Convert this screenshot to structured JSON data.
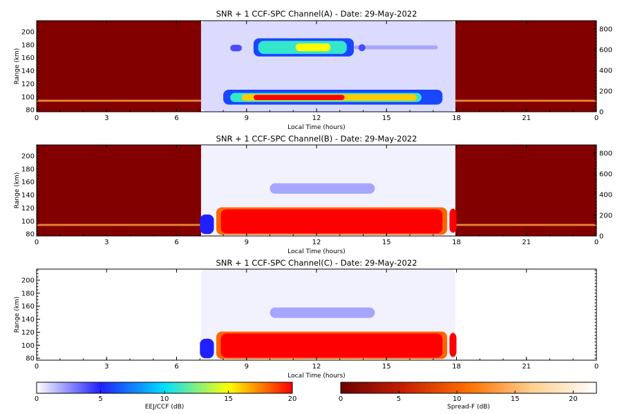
{
  "chart_data": [
    {
      "type": "heatmap",
      "title": "SNR + 1 CCF-SPC Channel(A) - Date: 29-May-2022",
      "xlabel": "Local Time (hours)",
      "ylabel": "Range (km)",
      "xlim": [
        0,
        24
      ],
      "ylim": [
        77,
        217
      ],
      "y2lim": [
        0,
        880
      ],
      "xticks": [
        "0",
        "3",
        "6",
        "9",
        "12",
        "15",
        "18",
        "21",
        "0"
      ],
      "yticks": [
        "80",
        "100",
        "120",
        "140",
        "160",
        "180",
        "200"
      ],
      "y2ticks": [
        "0",
        "200",
        "400",
        "600",
        "800"
      ],
      "night_spread_f": true,
      "blocks": [
        {
          "x": [
            7.05,
            17.95
          ],
          "y": [
            77,
            217
          ],
          "colormap": "eej",
          "db": 0.8
        },
        {
          "x": [
            8.0,
            17.4
          ],
          "y": [
            88,
            111
          ],
          "colormap": "eej",
          "db": 6
        },
        {
          "x": [
            8.3,
            16.5
          ],
          "y": [
            92,
            106
          ],
          "colormap": "eej",
          "db": 11
        },
        {
          "x": [
            8.8,
            16.3
          ],
          "y": [
            94,
            104
          ],
          "colormap": "eej",
          "db": 16
        },
        {
          "x": [
            9.3,
            13.2
          ],
          "y": [
            95,
            103
          ],
          "colormap": "eej",
          "db": 20
        },
        {
          "x": [
            9.3,
            13.6
          ],
          "y": [
            162,
            190
          ],
          "colormap": "eej",
          "db": 6
        },
        {
          "x": [
            9.5,
            13.3
          ],
          "y": [
            166,
            186
          ],
          "colormap": "eej",
          "db": 11
        },
        {
          "x": [
            11.1,
            12.6
          ],
          "y": [
            170,
            182
          ],
          "colormap": "eej",
          "db": 15
        },
        {
          "x": [
            8.3,
            8.8
          ],
          "y": [
            170,
            180
          ],
          "colormap": "eej",
          "db": 4
        },
        {
          "x": [
            13.6,
            17.2
          ],
          "y": [
            173,
            179
          ],
          "colormap": "eej",
          "db": 2
        },
        {
          "x": [
            13.8,
            14.1
          ],
          "y": [
            170,
            181
          ],
          "colormap": "eej",
          "db": 4
        }
      ]
    },
    {
      "type": "heatmap",
      "title": "SNR + 1 CCF-SPC Channel(B) - Date: 29-May-2022",
      "xlabel": "Local Time (hours)",
      "ylabel": "Range (km)",
      "xlim": [
        0,
        24
      ],
      "ylim": [
        77,
        217
      ],
      "y2lim": [
        0,
        880
      ],
      "xticks": [
        "0",
        "3",
        "6",
        "9",
        "12",
        "15",
        "18",
        "21",
        "0"
      ],
      "yticks": [
        "80",
        "100",
        "120",
        "140",
        "160",
        "180",
        "200"
      ],
      "y2ticks": [
        "0",
        "200",
        "400",
        "600",
        "800"
      ],
      "night_spread_f": true,
      "blocks": [
        {
          "x": [
            7.05,
            17.95
          ],
          "y": [
            77,
            217
          ],
          "colormap": "eej",
          "db": 0.3
        },
        {
          "x": [
            10.0,
            14.5
          ],
          "y": [
            142,
            158
          ],
          "colormap": "eej",
          "db": 2
        },
        {
          "x": [
            7.0,
            7.6
          ],
          "y": [
            80,
            110
          ],
          "colormap": "eej",
          "db": 5
        },
        {
          "x": [
            7.7,
            17.6
          ],
          "y": [
            79,
            121
          ],
          "colormap": "eej",
          "db": 18
        },
        {
          "x": [
            7.9,
            17.4
          ],
          "y": [
            81,
            118
          ],
          "colormap": "eej",
          "db": 20
        },
        {
          "x": [
            17.7,
            18.0
          ],
          "y": [
            82,
            119
          ],
          "colormap": "eej",
          "db": 20
        }
      ]
    },
    {
      "type": "heatmap",
      "title": "SNR + 1 CCF-SPC Channel(C) - Date: 29-May-2022",
      "xlabel": "Local Time (hours)",
      "ylabel": "Range (km)",
      "xlim": [
        0,
        24
      ],
      "ylim": [
        77,
        217
      ],
      "xticks": [
        "0",
        "3",
        "6",
        "9",
        "12",
        "15",
        "18",
        "21",
        "0"
      ],
      "yticks": [
        "80",
        "100",
        "120",
        "140",
        "160",
        "180",
        "200"
      ],
      "night_spread_f": false,
      "blocks": [
        {
          "x": [
            7.05,
            17.95
          ],
          "y": [
            77,
            217
          ],
          "colormap": "eej",
          "db": 0.3
        },
        {
          "x": [
            10.0,
            14.5
          ],
          "y": [
            142,
            158
          ],
          "colormap": "eej",
          "db": 2
        },
        {
          "x": [
            7.0,
            7.6
          ],
          "y": [
            80,
            110
          ],
          "colormap": "eej",
          "db": 5
        },
        {
          "x": [
            7.7,
            17.6
          ],
          "y": [
            79,
            121
          ],
          "colormap": "eej",
          "db": 18
        },
        {
          "x": [
            7.9,
            17.4
          ],
          "y": [
            81,
            118
          ],
          "colormap": "eej",
          "db": 20
        },
        {
          "x": [
            17.7,
            18.0
          ],
          "y": [
            82,
            119
          ],
          "colormap": "eej",
          "db": 20
        }
      ]
    }
  ],
  "colorbars": [
    {
      "label": "EEJ/CCF (dB)",
      "range": [
        0,
        20
      ],
      "ticks": [
        "0",
        "5",
        "10",
        "15",
        "20"
      ],
      "colors": [
        "#ffffff",
        "#2020ff",
        "#00e0ff",
        "#ffff00",
        "#ff0000"
      ]
    },
    {
      "label": "Spread-F (dB)",
      "range": [
        0,
        22
      ],
      "ticks": [
        "0",
        "5",
        "10",
        "15",
        "20"
      ],
      "colors": [
        "#6e0000",
        "#c82000",
        "#ff7000",
        "#ffd090",
        "#ffffff"
      ]
    }
  ],
  "colors": {
    "spread_f_background": "#820000",
    "spread_f_layer": "#ffa040"
  }
}
